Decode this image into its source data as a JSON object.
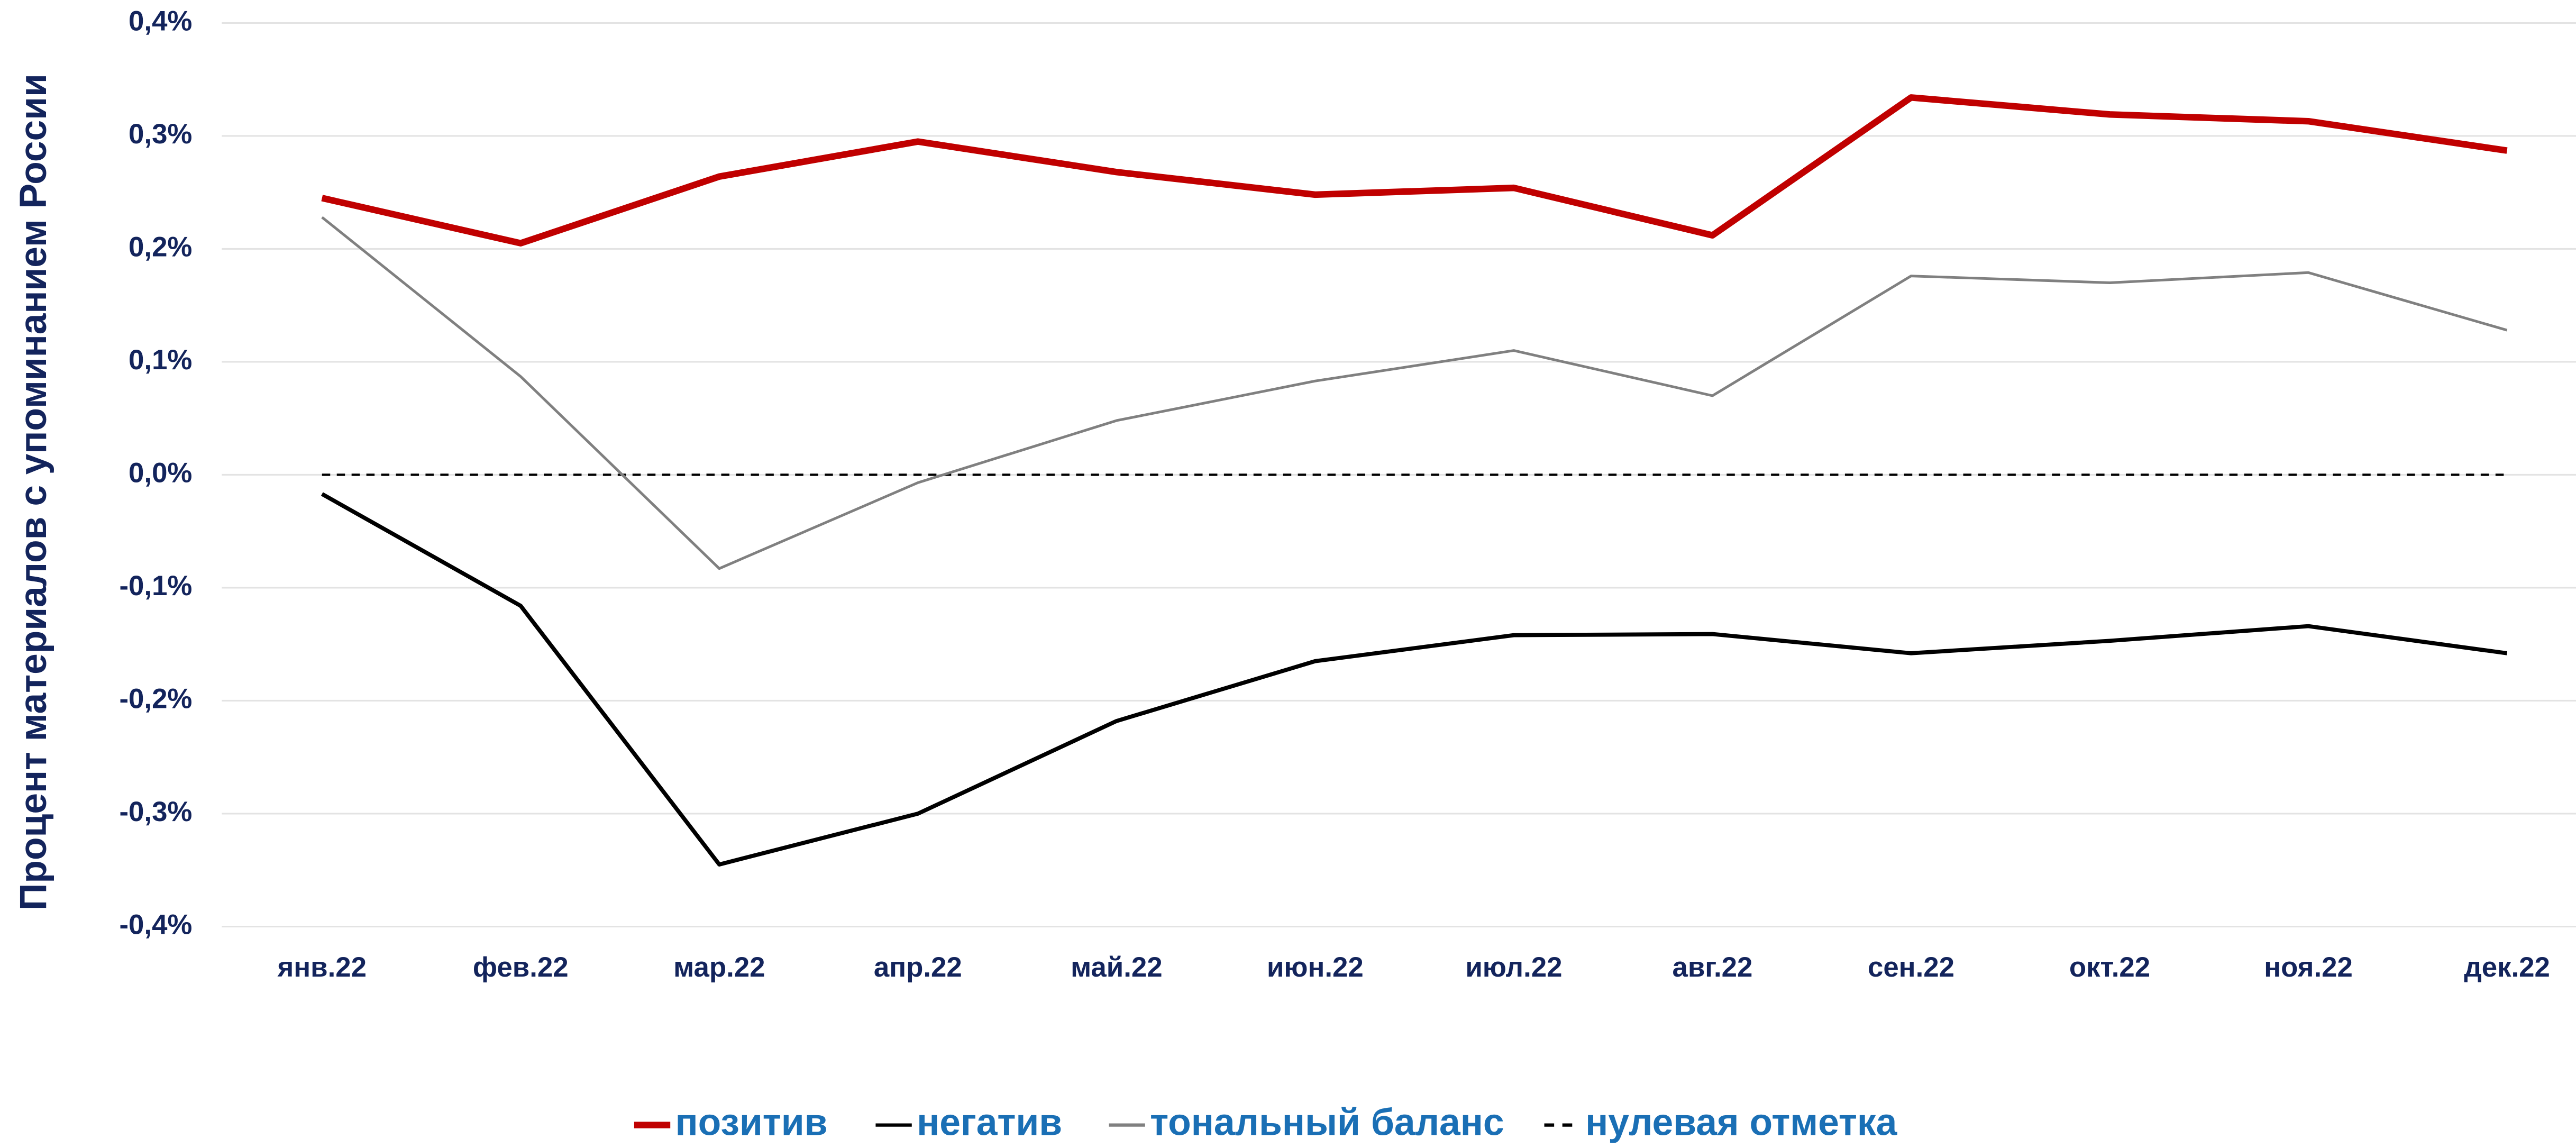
{
  "chart_data": {
    "type": "line",
    "y_axis_label": "Процент материалов с упоминанием России",
    "categories": [
      "янв.22",
      "фев.22",
      "мар.22",
      "апр.22",
      "май.22",
      "июн.22",
      "июл.22",
      "авг.22",
      "сен.22",
      "окт.22",
      "ноя.22",
      "дек.22"
    ],
    "series": [
      {
        "name": "позитив",
        "color": "#c00000",
        "values": [
          0.245,
          0.205,
          0.264,
          0.295,
          0.268,
          0.248,
          0.254,
          0.212,
          0.334,
          0.319,
          0.313,
          0.287
        ]
      },
      {
        "name": "негатив",
        "color": "#000000",
        "values": [
          -0.017,
          -0.116,
          -0.345,
          -0.3,
          -0.218,
          -0.165,
          -0.142,
          -0.141,
          -0.158,
          -0.147,
          -0.134,
          -0.158
        ]
      },
      {
        "name": "тональный баланс",
        "color": "#808080",
        "values": [
          0.228,
          0.087,
          -0.083,
          -0.007,
          0.048,
          0.083,
          0.11,
          0.07,
          0.176,
          0.17,
          0.179,
          0.128
        ]
      },
      {
        "name": "нулевая отметка",
        "color": "#000000",
        "dash": true,
        "values": [
          0,
          0,
          0,
          0,
          0,
          0,
          0,
          0,
          0,
          0,
          0,
          0
        ]
      }
    ],
    "ylim": [
      -0.4,
      0.4
    ],
    "yticks": [
      {
        "value": -0.4,
        "label": "-0,4%"
      },
      {
        "value": -0.3,
        "label": "-0,3%"
      },
      {
        "value": -0.2,
        "label": "-0,2%"
      },
      {
        "value": -0.1,
        "label": "-0,1%"
      },
      {
        "value": 0,
        "label": "0,0%"
      },
      {
        "value": 0.1,
        "label": "0,1%"
      },
      {
        "value": 0.2,
        "label": "0,2%"
      },
      {
        "value": 0.3,
        "label": "0,3%"
      },
      {
        "value": 0.4,
        "label": "0,4%"
      }
    ],
    "grid": true,
    "legend": "bottom"
  }
}
